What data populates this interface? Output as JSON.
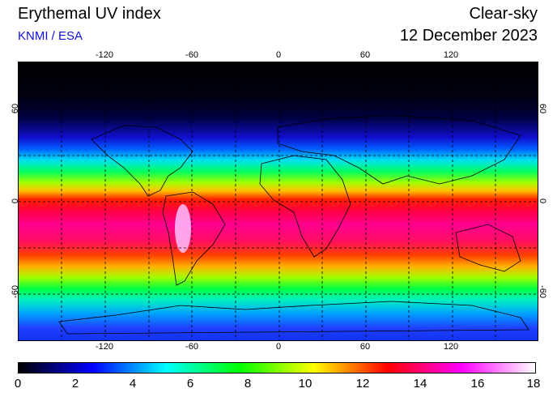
{
  "header": {
    "title": "Erythemal UV index",
    "source": "KNMI / ESA",
    "condition": "Clear-sky",
    "date": "12 December 2023"
  },
  "map": {
    "lon_ticks": [
      "-120",
      "-60",
      "0",
      "60",
      "120"
    ],
    "lat_ticks": [
      "60",
      "0",
      "-60"
    ],
    "lon_range": [
      -180,
      180
    ],
    "lat_range": [
      -90,
      90
    ]
  },
  "colorbar": {
    "min": 0,
    "max": 18,
    "ticks": [
      "0",
      "2",
      "4",
      "6",
      "8",
      "10",
      "12",
      "14",
      "16",
      "18"
    ],
    "colors": [
      "#000000",
      "#0000ff",
      "#00ffff",
      "#00ff00",
      "#ffff00",
      "#ff0000",
      "#ff00ff",
      "#ffffff"
    ]
  },
  "colors": {
    "source_text": "#1010e0"
  }
}
